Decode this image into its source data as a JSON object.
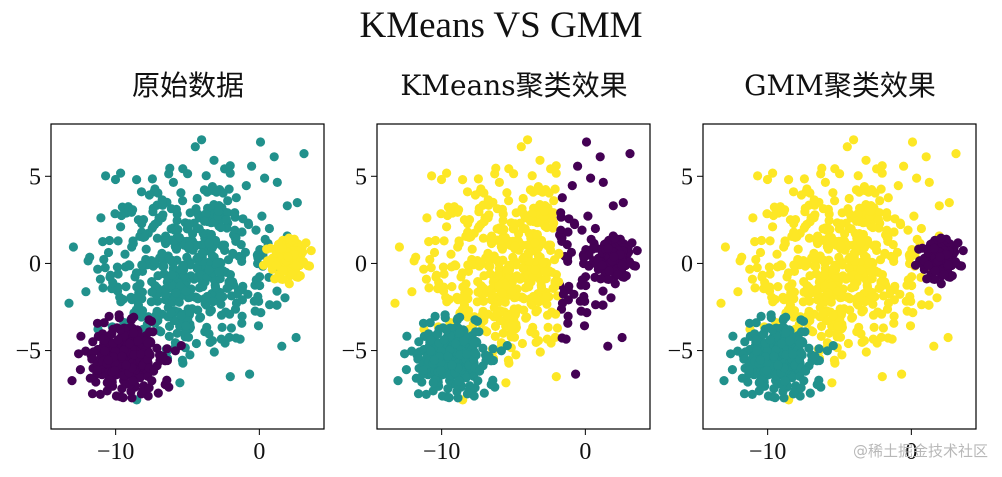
{
  "figure": {
    "suptitle": "KMeans VS GMM",
    "watermark": "@稀土掘金技术社区"
  },
  "colors": {
    "purple": "#440154",
    "teal": "#21918c",
    "yellow": "#fde725"
  },
  "chart_data": [
    {
      "type": "scatter",
      "title": "原始数据",
      "xlim": [
        -14.5,
        4.5
      ],
      "ylim": [
        -9.5,
        8.0
      ],
      "xticks": [
        -10,
        0
      ],
      "xtick_labels": [
        "−10",
        "0"
      ],
      "yticks": [
        5,
        0,
        -5
      ],
      "ytick_labels": [
        "5",
        "0",
        "−5"
      ],
      "grid": false,
      "clusters": [
        {
          "color": "teal",
          "center": [
            -5.0,
            0.0
          ],
          "spread": [
            3.0,
            2.6
          ],
          "n": 520
        },
        {
          "color": "purple",
          "center": [
            -9.3,
            -5.3
          ],
          "spread": [
            1.2,
            1.0
          ],
          "n": 340
        },
        {
          "color": "yellow",
          "center": [
            2.0,
            0.3
          ],
          "spread": [
            0.6,
            0.55
          ],
          "n": 150
        }
      ]
    },
    {
      "type": "scatter",
      "title": "KMeans聚类效果",
      "xlim": [
        -14.5,
        4.5
      ],
      "ylim": [
        -9.5,
        8.0
      ],
      "xticks": [
        -10,
        0
      ],
      "xtick_labels": [
        "−10",
        "0"
      ],
      "yticks": [
        5,
        0,
        -5
      ],
      "ytick_labels": [
        "5",
        "0",
        "−5"
      ],
      "grid": false,
      "split_x": -1.8,
      "clusters": [
        {
          "color": "yellow",
          "center": [
            -5.0,
            0.0
          ],
          "spread": [
            3.0,
            2.6
          ],
          "n": 520
        },
        {
          "color": "teal",
          "center": [
            -9.3,
            -5.3
          ],
          "spread": [
            1.2,
            1.0
          ],
          "n": 340
        },
        {
          "color": "purple",
          "center": [
            2.0,
            0.3
          ],
          "spread": [
            0.6,
            0.55
          ],
          "n": 150
        }
      ]
    },
    {
      "type": "scatter",
      "title": "GMM聚类效果",
      "xlim": [
        -14.5,
        4.5
      ],
      "ylim": [
        -9.5,
        8.0
      ],
      "xticks": [
        -10,
        0
      ],
      "xtick_labels": [
        "−10",
        "0"
      ],
      "yticks": [
        5,
        0,
        -5
      ],
      "ytick_labels": [
        "5",
        "0",
        "−5"
      ],
      "grid": false,
      "clusters": [
        {
          "color": "yellow",
          "center": [
            -5.0,
            0.0
          ],
          "spread": [
            3.0,
            2.6
          ],
          "n": 520
        },
        {
          "color": "teal",
          "center": [
            -9.3,
            -5.3
          ],
          "spread": [
            1.2,
            1.0
          ],
          "n": 340
        },
        {
          "color": "purple",
          "center": [
            2.0,
            0.3
          ],
          "spread": [
            0.6,
            0.55
          ],
          "n": 150
        }
      ]
    }
  ]
}
